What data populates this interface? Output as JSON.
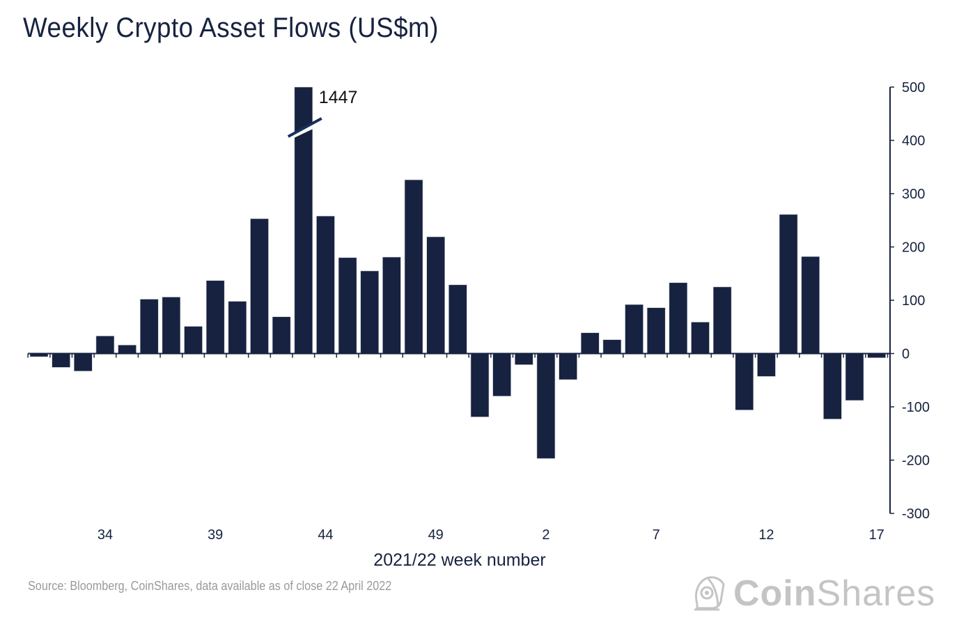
{
  "chart_data": {
    "type": "bar",
    "title": "Weekly Crypto Asset Flows (US$m)",
    "xlabel": "2021/22 week number",
    "ylabel": "",
    "ylim": [
      -300,
      500
    ],
    "yticks": [
      500,
      400,
      300,
      200,
      100,
      0,
      -100,
      -200,
      -300
    ],
    "ytick_labels": [
      "500",
      "400",
      "300",
      "200",
      "100",
      "0",
      "-100",
      "-200",
      "-300"
    ],
    "y_axis_position": "right",
    "grid": false,
    "categories": [
      "31",
      "32",
      "33",
      "34",
      "35",
      "36",
      "37",
      "38",
      "39",
      "40",
      "41",
      "42",
      "43",
      "44",
      "45",
      "46",
      "47",
      "48",
      "49",
      "50",
      "51",
      "52",
      "1",
      "2",
      "3",
      "4",
      "5",
      "6",
      "7",
      "8",
      "9",
      "10",
      "11",
      "12",
      "13",
      "14",
      "15",
      "16",
      "17"
    ],
    "xtick_labels": [
      "34",
      "39",
      "44",
      "49",
      "2",
      "7",
      "12",
      "17"
    ],
    "values": [
      -6,
      -26,
      -33,
      33,
      16,
      102,
      106,
      51,
      137,
      98,
      253,
      69,
      1447,
      258,
      180,
      155,
      181,
      326,
      219,
      129,
      -119,
      -80,
      -21,
      -197,
      -49,
      39,
      26,
      92,
      86,
      133,
      59,
      125,
      -106,
      -43,
      261,
      182,
      -123,
      -88,
      -8
    ],
    "annotations": [
      {
        "category": "43",
        "text": "1447",
        "note": "axis break, bar truncated at 500"
      }
    ],
    "bar_color": "#16223f"
  },
  "footer": {
    "source": "Source: Bloomberg, CoinShares, data available as of close 22 April 2022",
    "logo_bold": "Coin",
    "logo_light": "Shares"
  }
}
